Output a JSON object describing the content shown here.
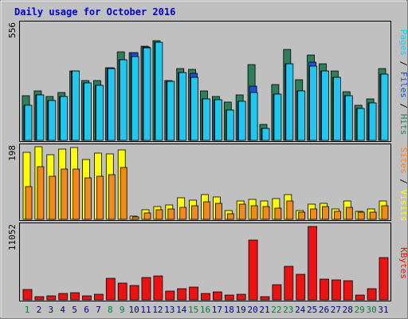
{
  "title": "Daily usage for October 2016",
  "colors": {
    "background": "#c0c0c0",
    "title": "#0000cc",
    "hits": "#2e7d5b",
    "files": "#1e4fd8",
    "pages": "#20c8f0",
    "visits": "#ffff00",
    "sites": "#f08a18",
    "kbytes": "#ee1111",
    "weekend_label": "#008040",
    "weekday_label": "#000080"
  },
  "chart_data": [
    {
      "type": "bar",
      "name": "pages-files-hits",
      "ymax_label": "556",
      "ylim": [
        0,
        556
      ],
      "side_label": [
        {
          "text": "Pages",
          "color": "#20c8f0"
        },
        {
          "text": " / ",
          "color": "#000000"
        },
        {
          "text": "Files",
          "color": "#1e4fd8"
        },
        {
          "text": " / ",
          "color": "#000000"
        },
        {
          "text": "Hits",
          "color": "#2e7d5b"
        }
      ],
      "categories": [
        "1",
        "2",
        "3",
        "4",
        "5",
        "6",
        "7",
        "8",
        "9",
        "10",
        "11",
        "12",
        "13",
        "14",
        "15",
        "16",
        "17",
        "18",
        "19",
        "20",
        "21",
        "22",
        "23",
        "24",
        "25",
        "26",
        "27",
        "28",
        "29",
        "30",
        "31"
      ],
      "series": [
        {
          "name": "Hits",
          "values": [
            215,
            236,
            211,
            229,
            333,
            285,
            285,
            345,
            424,
            420,
            451,
            475,
            287,
            342,
            339,
            236,
            210,
            181,
            218,
            360,
            75,
            266,
            436,
            288,
            406,
            364,
            333,
            232,
            166,
            199,
            344
          ]
        },
        {
          "name": "Files",
          "values": [
            169,
            218,
            189,
            210,
            330,
            273,
            263,
            345,
            386,
            417,
            446,
            469,
            283,
            322,
            320,
            199,
            194,
            145,
            186,
            258,
            58,
            222,
            364,
            238,
            373,
            330,
            300,
            212,
            153,
            180,
            317
          ]
        },
        {
          "name": "Pages",
          "values": [
            169,
            218,
            189,
            210,
            330,
            273,
            263,
            341,
            386,
            399,
            440,
            469,
            283,
            322,
            302,
            199,
            194,
            145,
            186,
            229,
            58,
            222,
            364,
            238,
            353,
            330,
            300,
            212,
            153,
            180,
            317
          ]
        }
      ]
    },
    {
      "type": "bar",
      "name": "sites-visits",
      "ymax_label": "198",
      "ylim": [
        0,
        198
      ],
      "side_label": [
        {
          "text": "Sites",
          "color": "#f08a18"
        },
        {
          "text": " / ",
          "color": "#000000"
        },
        {
          "text": "Visits",
          "color": "#ffff00"
        }
      ],
      "categories": [
        "1",
        "2",
        "3",
        "4",
        "5",
        "6",
        "7",
        "8",
        "9",
        "10",
        "11",
        "12",
        "13",
        "14",
        "15",
        "16",
        "17",
        "18",
        "19",
        "20",
        "21",
        "22",
        "23",
        "24",
        "25",
        "26",
        "27",
        "28",
        "29",
        "30",
        "31"
      ],
      "series": [
        {
          "name": "Visits",
          "values": [
            182,
            198,
            177,
            191,
            195,
            163,
            180,
            178,
            189,
            9,
            26,
            34,
            40,
            58,
            53,
            68,
            62,
            24,
            49,
            55,
            50,
            57,
            67,
            23,
            41,
            44,
            28,
            50,
            22,
            28,
            50
          ]
        },
        {
          "name": "Sites",
          "values": [
            89,
            143,
            118,
            136,
            138,
            114,
            118,
            122,
            141,
            6,
            17,
            26,
            28,
            33,
            37,
            48,
            43,
            15,
            41,
            38,
            34,
            31,
            51,
            20,
            28,
            34,
            21,
            33,
            19,
            20,
            37
          ]
        }
      ]
    },
    {
      "type": "bar",
      "name": "kbytes",
      "ymax_label": "11052",
      "ylim": [
        0,
        11052
      ],
      "side_label": [
        {
          "text": "KBytes",
          "color": "#ee1111"
        }
      ],
      "categories": [
        "1",
        "2",
        "3",
        "4",
        "5",
        "6",
        "7",
        "8",
        "9",
        "10",
        "11",
        "12",
        "13",
        "14",
        "15",
        "16",
        "17",
        "18",
        "19",
        "20",
        "21",
        "22",
        "23",
        "24",
        "25",
        "26",
        "27",
        "28",
        "29",
        "30",
        "31"
      ],
      "series": [
        {
          "name": "KBytes",
          "values": [
            1533,
            438,
            646,
            987,
            1139,
            591,
            789,
            3296,
            2575,
            2198,
            3317,
            3616,
            1364,
            1732,
            1896,
            964,
            1148,
            746,
            789,
            9053,
            482,
            2318,
            4997,
            3787,
            11052,
            3108,
            3008,
            2856,
            733,
            1710,
            6384
          ]
        }
      ]
    }
  ],
  "day_labels": [
    "1",
    "2",
    "3",
    "4",
    "5",
    "6",
    "7",
    "8",
    "9",
    "10",
    "11",
    "12",
    "13",
    "14",
    "15",
    "16",
    "17",
    "18",
    "19",
    "20",
    "21",
    "22",
    "23",
    "24",
    "25",
    "26",
    "27",
    "28",
    "29",
    "30",
    "31"
  ],
  "weekend_days": [
    "1",
    "8",
    "9",
    "15",
    "16",
    "22",
    "23",
    "29",
    "30"
  ]
}
